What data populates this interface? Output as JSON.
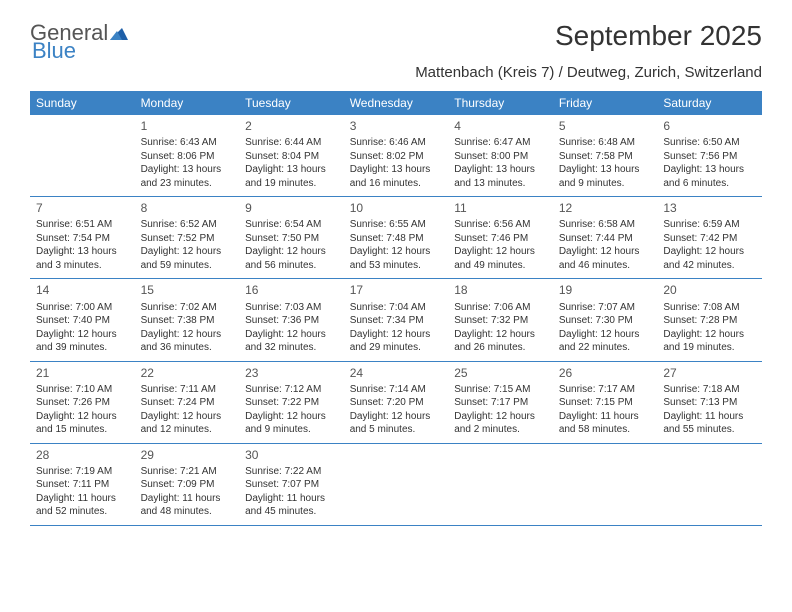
{
  "brand": {
    "part1": "General",
    "part2": "Blue"
  },
  "title": "September 2025",
  "subtitle": "Mattenbach (Kreis 7) / Deutweg, Zurich, Switzerland",
  "colors": {
    "header_bg": "#3b82c4",
    "header_text": "#ffffff",
    "border": "#3b82c4",
    "text": "#333333",
    "brand_gray": "#555555",
    "brand_blue": "#3b82c4",
    "background": "#ffffff"
  },
  "day_headers": [
    "Sunday",
    "Monday",
    "Tuesday",
    "Wednesday",
    "Thursday",
    "Friday",
    "Saturday"
  ],
  "weeks": [
    [
      {
        "n": "",
        "sr": "",
        "ss": "",
        "dl": ""
      },
      {
        "n": "1",
        "sr": "Sunrise: 6:43 AM",
        "ss": "Sunset: 8:06 PM",
        "dl": "Daylight: 13 hours and 23 minutes."
      },
      {
        "n": "2",
        "sr": "Sunrise: 6:44 AM",
        "ss": "Sunset: 8:04 PM",
        "dl": "Daylight: 13 hours and 19 minutes."
      },
      {
        "n": "3",
        "sr": "Sunrise: 6:46 AM",
        "ss": "Sunset: 8:02 PM",
        "dl": "Daylight: 13 hours and 16 minutes."
      },
      {
        "n": "4",
        "sr": "Sunrise: 6:47 AM",
        "ss": "Sunset: 8:00 PM",
        "dl": "Daylight: 13 hours and 13 minutes."
      },
      {
        "n": "5",
        "sr": "Sunrise: 6:48 AM",
        "ss": "Sunset: 7:58 PM",
        "dl": "Daylight: 13 hours and 9 minutes."
      },
      {
        "n": "6",
        "sr": "Sunrise: 6:50 AM",
        "ss": "Sunset: 7:56 PM",
        "dl": "Daylight: 13 hours and 6 minutes."
      }
    ],
    [
      {
        "n": "7",
        "sr": "Sunrise: 6:51 AM",
        "ss": "Sunset: 7:54 PM",
        "dl": "Daylight: 13 hours and 3 minutes."
      },
      {
        "n": "8",
        "sr": "Sunrise: 6:52 AM",
        "ss": "Sunset: 7:52 PM",
        "dl": "Daylight: 12 hours and 59 minutes."
      },
      {
        "n": "9",
        "sr": "Sunrise: 6:54 AM",
        "ss": "Sunset: 7:50 PM",
        "dl": "Daylight: 12 hours and 56 minutes."
      },
      {
        "n": "10",
        "sr": "Sunrise: 6:55 AM",
        "ss": "Sunset: 7:48 PM",
        "dl": "Daylight: 12 hours and 53 minutes."
      },
      {
        "n": "11",
        "sr": "Sunrise: 6:56 AM",
        "ss": "Sunset: 7:46 PM",
        "dl": "Daylight: 12 hours and 49 minutes."
      },
      {
        "n": "12",
        "sr": "Sunrise: 6:58 AM",
        "ss": "Sunset: 7:44 PM",
        "dl": "Daylight: 12 hours and 46 minutes."
      },
      {
        "n": "13",
        "sr": "Sunrise: 6:59 AM",
        "ss": "Sunset: 7:42 PM",
        "dl": "Daylight: 12 hours and 42 minutes."
      }
    ],
    [
      {
        "n": "14",
        "sr": "Sunrise: 7:00 AM",
        "ss": "Sunset: 7:40 PM",
        "dl": "Daylight: 12 hours and 39 minutes."
      },
      {
        "n": "15",
        "sr": "Sunrise: 7:02 AM",
        "ss": "Sunset: 7:38 PM",
        "dl": "Daylight: 12 hours and 36 minutes."
      },
      {
        "n": "16",
        "sr": "Sunrise: 7:03 AM",
        "ss": "Sunset: 7:36 PM",
        "dl": "Daylight: 12 hours and 32 minutes."
      },
      {
        "n": "17",
        "sr": "Sunrise: 7:04 AM",
        "ss": "Sunset: 7:34 PM",
        "dl": "Daylight: 12 hours and 29 minutes."
      },
      {
        "n": "18",
        "sr": "Sunrise: 7:06 AM",
        "ss": "Sunset: 7:32 PM",
        "dl": "Daylight: 12 hours and 26 minutes."
      },
      {
        "n": "19",
        "sr": "Sunrise: 7:07 AM",
        "ss": "Sunset: 7:30 PM",
        "dl": "Daylight: 12 hours and 22 minutes."
      },
      {
        "n": "20",
        "sr": "Sunrise: 7:08 AM",
        "ss": "Sunset: 7:28 PM",
        "dl": "Daylight: 12 hours and 19 minutes."
      }
    ],
    [
      {
        "n": "21",
        "sr": "Sunrise: 7:10 AM",
        "ss": "Sunset: 7:26 PM",
        "dl": "Daylight: 12 hours and 15 minutes."
      },
      {
        "n": "22",
        "sr": "Sunrise: 7:11 AM",
        "ss": "Sunset: 7:24 PM",
        "dl": "Daylight: 12 hours and 12 minutes."
      },
      {
        "n": "23",
        "sr": "Sunrise: 7:12 AM",
        "ss": "Sunset: 7:22 PM",
        "dl": "Daylight: 12 hours and 9 minutes."
      },
      {
        "n": "24",
        "sr": "Sunrise: 7:14 AM",
        "ss": "Sunset: 7:20 PM",
        "dl": "Daylight: 12 hours and 5 minutes."
      },
      {
        "n": "25",
        "sr": "Sunrise: 7:15 AM",
        "ss": "Sunset: 7:17 PM",
        "dl": "Daylight: 12 hours and 2 minutes."
      },
      {
        "n": "26",
        "sr": "Sunrise: 7:17 AM",
        "ss": "Sunset: 7:15 PM",
        "dl": "Daylight: 11 hours and 58 minutes."
      },
      {
        "n": "27",
        "sr": "Sunrise: 7:18 AM",
        "ss": "Sunset: 7:13 PM",
        "dl": "Daylight: 11 hours and 55 minutes."
      }
    ],
    [
      {
        "n": "28",
        "sr": "Sunrise: 7:19 AM",
        "ss": "Sunset: 7:11 PM",
        "dl": "Daylight: 11 hours and 52 minutes."
      },
      {
        "n": "29",
        "sr": "Sunrise: 7:21 AM",
        "ss": "Sunset: 7:09 PM",
        "dl": "Daylight: 11 hours and 48 minutes."
      },
      {
        "n": "30",
        "sr": "Sunrise: 7:22 AM",
        "ss": "Sunset: 7:07 PM",
        "dl": "Daylight: 11 hours and 45 minutes."
      },
      {
        "n": "",
        "sr": "",
        "ss": "",
        "dl": ""
      },
      {
        "n": "",
        "sr": "",
        "ss": "",
        "dl": ""
      },
      {
        "n": "",
        "sr": "",
        "ss": "",
        "dl": ""
      },
      {
        "n": "",
        "sr": "",
        "ss": "",
        "dl": ""
      }
    ]
  ]
}
